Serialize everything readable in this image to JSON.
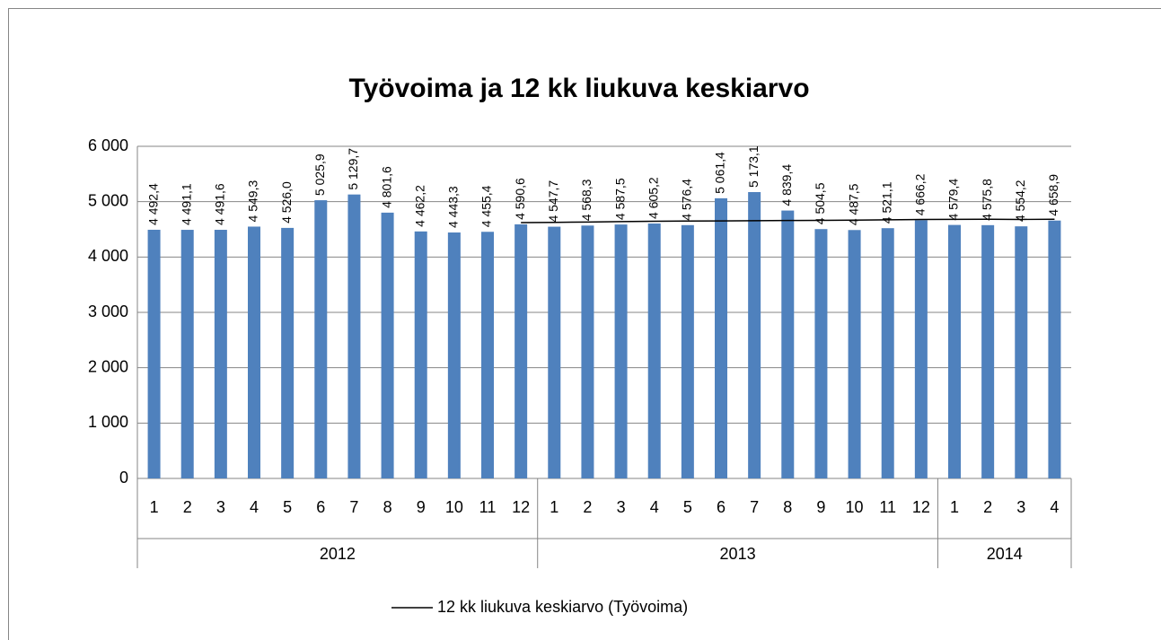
{
  "chart_data": {
    "type": "bar",
    "title": "Työvoima ja 12 kk liukuva keskiarvo",
    "categories": [
      "1",
      "2",
      "3",
      "4",
      "5",
      "6",
      "7",
      "8",
      "9",
      "10",
      "11",
      "12",
      "1",
      "2",
      "3",
      "4",
      "5",
      "6",
      "7",
      "8",
      "9",
      "10",
      "11",
      "12",
      "1",
      "2",
      "3",
      "4"
    ],
    "years": [
      "2012",
      "2012",
      "2012",
      "2012",
      "2012",
      "2012",
      "2012",
      "2012",
      "2012",
      "2012",
      "2012",
      "2012",
      "2013",
      "2013",
      "2013",
      "2013",
      "2013",
      "2013",
      "2013",
      "2013",
      "2013",
      "2013",
      "2013",
      "2013",
      "2014",
      "2014",
      "2014",
      "2014"
    ],
    "series": [
      {
        "name": "Työvoima",
        "color": "#4f81bd",
        "values": [
          4492.4,
          4491.1,
          4491.6,
          4549.3,
          4526.0,
          5025.9,
          5129.7,
          4801.6,
          4462.2,
          4443.3,
          4455.4,
          4590.6,
          4547.7,
          4568.3,
          4587.5,
          4605.2,
          4576.4,
          5061.4,
          5173.1,
          4839.4,
          4504.5,
          4487.5,
          4521.1,
          4666.2,
          4579.4,
          4575.8,
          4554.2,
          4658.9
        ],
        "value_labels": [
          "4 492,4",
          "4 491,1",
          "4 491,6",
          "4 549,3",
          "4 526,0",
          "5 025,9",
          "5 129,7",
          "4 801,6",
          "4 462,2",
          "4 443,3",
          "4 455,4",
          "4 590,6",
          "4 547,7",
          "4 568,3",
          "4 587,5",
          "4 605,2",
          "4 576,4",
          "5 061,4",
          "5 173,1",
          "4 839,4",
          "4 504,5",
          "4 487,5",
          "4 521,1",
          "4 666,2",
          "4 579,4",
          "4 575,8",
          "4 554,2",
          "4 658,9"
        ]
      },
      {
        "name": "12 kk liukuva keskiarvo (Työvoima)",
        "color": "#000000",
        "type": "line",
        "values": [
          null,
          null,
          null,
          null,
          null,
          null,
          null,
          null,
          null,
          null,
          null,
          4621.6,
          4626.2,
          4632.6,
          4640.6,
          4645.3,
          4649.5,
          4652.4,
          4656.1,
          4659.2,
          4662.7,
          4666.4,
          4671.9,
          4678.2,
          4680.8,
          4681.5,
          4678.7,
          4683.2
        ]
      }
    ],
    "ylim": [
      0,
      6000
    ],
    "yticks": [
      0,
      {
        "value": 1000,
        "label": "1 000"
      },
      {
        "value": 2000,
        "label": "2 000"
      },
      {
        "value": 3000,
        "label": "3 000"
      },
      {
        "value": 4000,
        "label": "4 000"
      },
      {
        "value": 5000,
        "label": "5 000"
      },
      {
        "value": 6000,
        "label": "6 000"
      }
    ],
    "grid": true,
    "legend": "bottom"
  }
}
